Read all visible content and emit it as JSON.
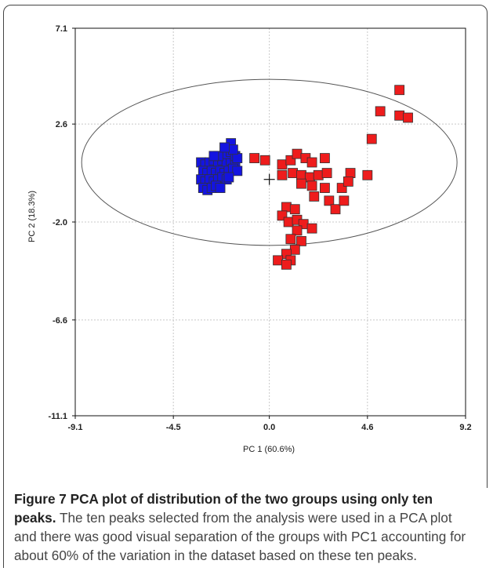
{
  "chart_data": {
    "type": "scatter",
    "xlabel": "PC 1 (60.6%)",
    "ylabel": "PC 2 (18.3%)",
    "xlim": [
      -9.1,
      9.2
    ],
    "ylim": [
      -11.1,
      7.1
    ],
    "x_ticks": [
      "-9.1",
      "-4.5",
      "0.0",
      "4.6",
      "9.2"
    ],
    "y_ticks": [
      "7.1",
      "2.6",
      "-2.0",
      "-6.6",
      "-11.1"
    ],
    "grid": true,
    "series": [
      {
        "color": "#1414e0",
        "marker": "square",
        "points": [
          [
            -3.2,
            0.8
          ],
          [
            -3.0,
            0.7
          ],
          [
            -2.8,
            0.8
          ],
          [
            -2.6,
            0.9
          ],
          [
            -2.4,
            0.8
          ],
          [
            -2.2,
            0.9
          ],
          [
            -2.0,
            0.8
          ],
          [
            -1.8,
            0.9
          ],
          [
            -1.6,
            0.8
          ],
          [
            -3.1,
            0.4
          ],
          [
            -2.9,
            0.3
          ],
          [
            -2.7,
            0.4
          ],
          [
            -2.5,
            0.3
          ],
          [
            -2.3,
            0.4
          ],
          [
            -2.1,
            0.3
          ],
          [
            -1.9,
            0.4
          ],
          [
            -1.7,
            0.5
          ],
          [
            -1.5,
            0.4
          ],
          [
            -3.2,
            0.0
          ],
          [
            -3.0,
            -0.1
          ],
          [
            -2.8,
            0.0
          ],
          [
            -2.6,
            -0.1
          ],
          [
            -2.4,
            0.0
          ],
          [
            -2.2,
            0.1
          ],
          [
            -2.0,
            0.0
          ],
          [
            -3.1,
            -0.4
          ],
          [
            -2.9,
            -0.5
          ],
          [
            -2.7,
            -0.4
          ],
          [
            -2.5,
            -0.3
          ],
          [
            -2.3,
            -0.4
          ],
          [
            -2.0,
            1.2
          ],
          [
            -1.8,
            1.3
          ],
          [
            -1.6,
            1.1
          ],
          [
            -2.4,
            1.1
          ],
          [
            -2.6,
            1.1
          ],
          [
            -1.5,
            1.0
          ],
          [
            -1.8,
            1.7
          ],
          [
            -1.7,
            1.4
          ],
          [
            -2.1,
            1.5
          ],
          [
            -1.9,
            0.1
          ]
        ]
      },
      {
        "color": "#ee1c1c",
        "marker": "square",
        "points": [
          [
            6.1,
            4.2
          ],
          [
            5.2,
            3.2
          ],
          [
            6.1,
            3.0
          ],
          [
            6.5,
            2.9
          ],
          [
            4.8,
            1.9
          ],
          [
            -0.7,
            1.0
          ],
          [
            -0.2,
            0.9
          ],
          [
            0.6,
            0.7
          ],
          [
            1.0,
            0.9
          ],
          [
            1.3,
            1.2
          ],
          [
            1.7,
            1.0
          ],
          [
            2.0,
            0.8
          ],
          [
            2.6,
            1.0
          ],
          [
            0.6,
            0.2
          ],
          [
            1.1,
            0.3
          ],
          [
            1.5,
            0.2
          ],
          [
            1.9,
            0.1
          ],
          [
            2.3,
            0.2
          ],
          [
            2.7,
            0.3
          ],
          [
            3.8,
            0.3
          ],
          [
            4.6,
            0.2
          ],
          [
            1.5,
            -0.2
          ],
          [
            2.0,
            -0.3
          ],
          [
            2.6,
            -0.4
          ],
          [
            3.4,
            -0.4
          ],
          [
            3.7,
            -0.1
          ],
          [
            2.8,
            -1.0
          ],
          [
            3.1,
            -1.4
          ],
          [
            3.5,
            -1.0
          ],
          [
            2.1,
            -0.8
          ],
          [
            0.8,
            -1.3
          ],
          [
            1.2,
            -1.4
          ],
          [
            0.6,
            -1.7
          ],
          [
            0.9,
            -2.0
          ],
          [
            1.3,
            -1.9
          ],
          [
            1.6,
            -2.1
          ],
          [
            1.3,
            -2.4
          ],
          [
            2.0,
            -2.3
          ],
          [
            1.0,
            -2.8
          ],
          [
            1.5,
            -2.9
          ],
          [
            1.2,
            -3.3
          ],
          [
            0.8,
            -3.5
          ],
          [
            1.0,
            -3.8
          ],
          [
            0.4,
            -3.8
          ],
          [
            0.8,
            -4.0
          ]
        ]
      }
    ],
    "centroid_marker": "+",
    "confidence_ellipse": true
  },
  "caption": {
    "title": "Figure 7 PCA plot of distribution of the two groups using only ten peaks.",
    "body": " The ten peaks selected from the analysis were used in a PCA plot and there was good visual separation of the groups with PC1 accounting for about 60% of the variation in the dataset based on these ten peaks."
  }
}
